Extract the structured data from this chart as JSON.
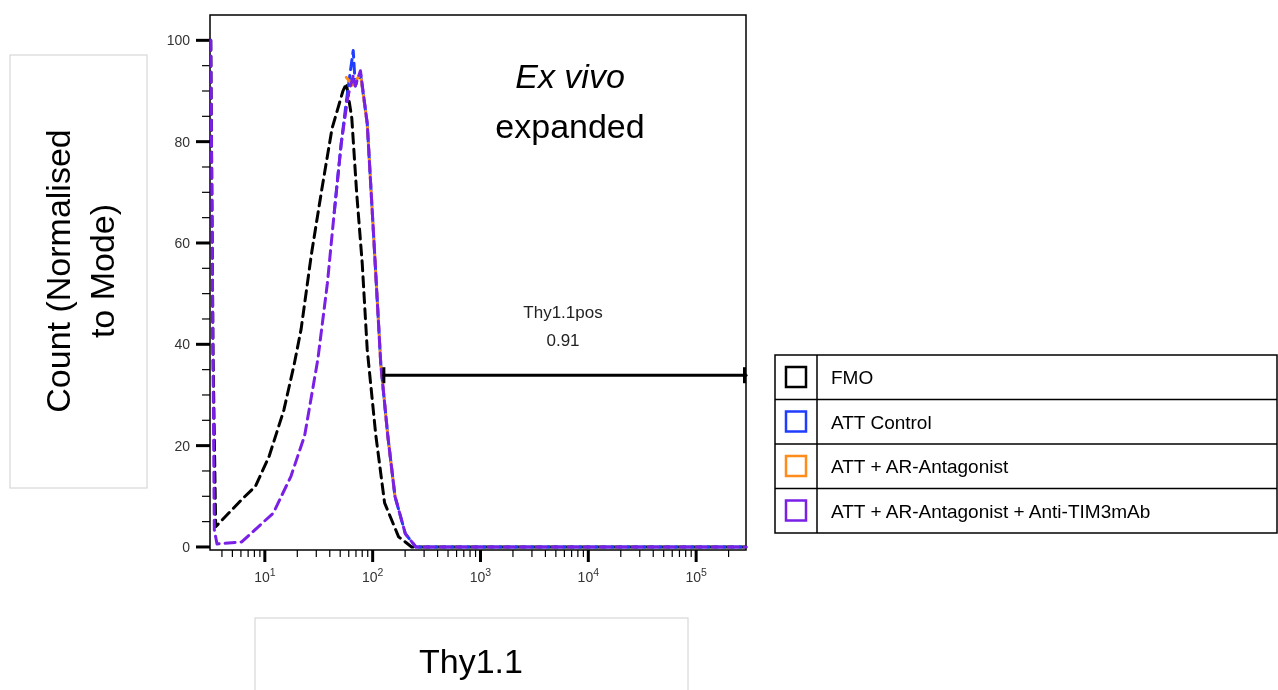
{
  "chart_data": {
    "type": "line",
    "title": "Ex vivo expanded",
    "xlabel": "Thy1.1",
    "ylabel": "Count (Normalised to Mode)",
    "log": "x",
    "line_style": "dashed",
    "legend": "right",
    "xlim": [
      3.1,
      290000
    ],
    "xticks": [
      {
        "value": 4,
        "label": null
      },
      {
        "value": 5,
        "label": null
      },
      {
        "value": 6,
        "label": null
      },
      {
        "value": 7,
        "label": null
      },
      {
        "value": 8,
        "label": null
      },
      {
        "value": 9,
        "label": null
      },
      {
        "value": 10,
        "label": "10$^{1}$"
      },
      {
        "value": 20,
        "label": null
      },
      {
        "value": 30,
        "label": null
      },
      {
        "value": 40,
        "label": null
      },
      {
        "value": 50,
        "label": null
      },
      {
        "value": 60,
        "label": null
      },
      {
        "value": 70,
        "label": null
      },
      {
        "value": 80,
        "label": null
      },
      {
        "value": 90,
        "label": null
      },
      {
        "value": 100,
        "label": "10$^{2}$"
      },
      {
        "value": 200,
        "label": null
      },
      {
        "value": 300,
        "label": null
      },
      {
        "value": 400,
        "label": null
      },
      {
        "value": 500,
        "label": null
      },
      {
        "value": 600,
        "label": null
      },
      {
        "value": 700,
        "label": null
      },
      {
        "value": 800,
        "label": null
      },
      {
        "value": 900,
        "label": null
      },
      {
        "value": 1000,
        "label": "10$^{3}$"
      },
      {
        "value": 2000,
        "label": null
      },
      {
        "value": 3000,
        "label": null
      },
      {
        "value": 4000,
        "label": null
      },
      {
        "value": 5000,
        "label": null
      },
      {
        "value": 6000,
        "label": null
      },
      {
        "value": 7000,
        "label": null
      },
      {
        "value": 8000,
        "label": null
      },
      {
        "value": 9000,
        "label": null
      },
      {
        "value": 10000,
        "label": "10$^{4}$"
      },
      {
        "value": 20000,
        "label": null
      },
      {
        "value": 30000,
        "label": null
      },
      {
        "value": 40000,
        "label": null
      },
      {
        "value": 50000,
        "label": null
      },
      {
        "value": 60000,
        "label": null
      },
      {
        "value": 70000,
        "label": null
      },
      {
        "value": 80000,
        "label": null
      },
      {
        "value": 90000,
        "label": null
      },
      {
        "value": 100000,
        "label": "10$^{5}$"
      },
      {
        "value": 200000,
        "label": null
      }
    ],
    "ylim": [
      -0.6,
      105
    ],
    "yticks": [
      0,
      {
        "value": 5,
        "label": null
      },
      {
        "value": 10,
        "label": null
      },
      {
        "value": 15,
        "label": null
      },
      20,
      {
        "value": 25,
        "label": null
      },
      {
        "value": 30,
        "label": null
      },
      {
        "value": 35,
        "label": null
      },
      40,
      {
        "value": 45,
        "label": null
      },
      {
        "value": 50,
        "label": null
      },
      {
        "value": 55,
        "label": null
      },
      60,
      {
        "value": 65,
        "label": null
      },
      {
        "value": 70,
        "label": null
      },
      {
        "value": 75,
        "label": null
      },
      80,
      {
        "value": 85,
        "label": null
      },
      {
        "value": 90,
        "label": null
      },
      {
        "value": 95,
        "label": null
      },
      100
    ],
    "series": [
      {
        "name": "FMO",
        "color": "#000000",
        "x": [
          3.15,
          3.3,
          3.5,
          6.2,
          8.2,
          11,
          15,
          18.7,
          21.7,
          27,
          34,
          42,
          53,
          57,
          64,
          71,
          80,
          89,
          107,
          129,
          174,
          230,
          290000
        ],
        "values": [
          100,
          40,
          4,
          9.5,
          12,
          18,
          27,
          36,
          43,
          57.7,
          71,
          82.6,
          90,
          91.5,
          84.7,
          70,
          56,
          39,
          22,
          8.7,
          2,
          0,
          0
        ]
      },
      {
        "name": "ATT Control",
        "color": "#1f3cff",
        "x": [
          44,
          51,
          57,
          66,
          69,
          77,
          89,
          103,
          119,
          138,
          161,
          201,
          252,
          290000
        ],
        "values": [
          66,
          79.5,
          88,
          98,
          91,
          93.5,
          83.6,
          60,
          36,
          22,
          10,
          2.6,
          0,
          0
        ]
      },
      {
        "name": "ATT + AR-Antagonist",
        "color": "#ff8c1a",
        "x": [
          57,
          66,
          77,
          89,
          103,
          119,
          138,
          161
        ],
        "values": [
          92.7,
          91,
          93.5,
          83.6,
          60,
          36,
          22,
          10
        ]
      },
      {
        "name": "ATT + AR-Antagonist + Anti-TIM3mAb",
        "color": "#7a1fe6",
        "x": [
          3.15,
          3.3,
          3.4,
          3.6,
          6.1,
          12,
          17.5,
          23.4,
          31,
          38,
          44,
          51,
          59,
          66,
          69,
          77,
          89,
          103,
          119,
          138,
          161,
          201,
          252,
          290000
        ],
        "values": [
          100,
          40,
          3.4,
          0.6,
          1,
          6.7,
          14,
          22,
          37,
          52,
          66,
          79.5,
          89,
          93,
          91,
          94,
          83.6,
          60,
          36,
          22,
          10,
          2.6,
          0,
          0
        ]
      },
      {
        "type": "line",
        "color": "#000000",
        "line_style": "solid",
        "x": [
          127,
          290000
        ],
        "values": [
          33.9,
          33.9
        ]
      }
    ],
    "annotations": [
      "Thy1.1pos",
      "0.91"
    ]
  }
}
